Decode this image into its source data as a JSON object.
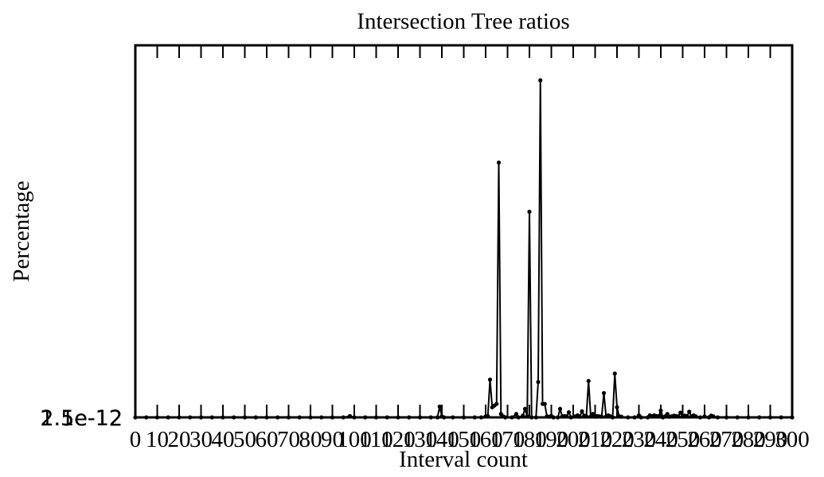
{
  "chart_data": {
    "type": "line",
    "title": "Intersection Tree ratios",
    "xlabel": "Interval count",
    "ylabel": "Percentage",
    "xlim": [
      0,
      300
    ],
    "ylim": [
      0,
      1.0
    ],
    "x_tick_labels": [
      "0",
      "10",
      "20",
      "30",
      "40",
      "50",
      "60",
      "70",
      "80",
      "90",
      "100",
      "110",
      "120",
      "130",
      "140",
      "150",
      "160",
      "170",
      "180",
      "190",
      "200",
      "210",
      "220",
      "230",
      "240",
      "250",
      "260",
      "270",
      "280",
      "290",
      "300"
    ],
    "y_tick_labels": [
      "2.5e-12",
      "1.5e-12",
      "1e-12"
    ],
    "grid": false,
    "legend": "none",
    "line_color": "#000000",
    "series": [
      {
        "points": [
          [
            0,
            0
          ],
          [
            5,
            0
          ],
          [
            10,
            0
          ],
          [
            15,
            0
          ],
          [
            20,
            0
          ],
          [
            25,
            0
          ],
          [
            30,
            0
          ],
          [
            35,
            0
          ],
          [
            40,
            0
          ],
          [
            45,
            0
          ],
          [
            50,
            0
          ],
          [
            55,
            0
          ],
          [
            60,
            0
          ],
          [
            65,
            0
          ],
          [
            70,
            0
          ],
          [
            75,
            0
          ],
          [
            80,
            0
          ],
          [
            85,
            0
          ],
          [
            90,
            0
          ],
          [
            95,
            0
          ],
          [
            98,
            0.004
          ],
          [
            100,
            0
          ],
          [
            105,
            0
          ],
          [
            110,
            0
          ],
          [
            115,
            0
          ],
          [
            120,
            0
          ],
          [
            125,
            0
          ],
          [
            130,
            0
          ],
          [
            135,
            0
          ],
          [
            138,
            0
          ],
          [
            139,
            0.032
          ],
          [
            140,
            0.003
          ],
          [
            141,
            0
          ],
          [
            145,
            0
          ],
          [
            150,
            0
          ],
          [
            155,
            0
          ],
          [
            158,
            0
          ],
          [
            160,
            0.003
          ],
          [
            161,
            0.004
          ],
          [
            162,
            0.112
          ],
          [
            163,
            0.03
          ],
          [
            164,
            0.035
          ],
          [
            165,
            0.04
          ],
          [
            166,
            0.756
          ],
          [
            167,
            0.01
          ],
          [
            168,
            0.003
          ],
          [
            169,
            0
          ],
          [
            172,
            0
          ],
          [
            174,
            0.01
          ],
          [
            175,
            0
          ],
          [
            177,
            0.005
          ],
          [
            178,
            0.025
          ],
          [
            179,
            0.003
          ],
          [
            180,
            0.61
          ],
          [
            181,
            0
          ],
          [
            183,
            0
          ],
          [
            184,
            0.105
          ],
          [
            185,
            1.0
          ],
          [
            186,
            0.04
          ],
          [
            187,
            0.04
          ],
          [
            188,
            0.003
          ],
          [
            189,
            0.002
          ],
          [
            190,
            0.004
          ],
          [
            191,
            0
          ],
          [
            193,
            0
          ],
          [
            194,
            0.025
          ],
          [
            195,
            0.003
          ],
          [
            196,
            0.004
          ],
          [
            197,
            0.003
          ],
          [
            198,
            0.015
          ],
          [
            199,
            0
          ],
          [
            201,
            0.003
          ],
          [
            202,
            0.006
          ],
          [
            203,
            0.002
          ],
          [
            204,
            0.018
          ],
          [
            205,
            0.005
          ],
          [
            206,
            0.003
          ],
          [
            207,
            0.108
          ],
          [
            208,
            0.003
          ],
          [
            209,
            0.01
          ],
          [
            210,
            0.002
          ],
          [
            211,
            0.004
          ],
          [
            212,
            0.003
          ],
          [
            213,
            0.002
          ],
          [
            214,
            0.072
          ],
          [
            215,
            0.003
          ],
          [
            216,
            0.006
          ],
          [
            217,
            0.003
          ],
          [
            218,
            0
          ],
          [
            219,
            0.13
          ],
          [
            220,
            0.03
          ],
          [
            221,
            0.003
          ],
          [
            222,
            0.002
          ],
          [
            225,
            0
          ],
          [
            228,
            0
          ],
          [
            230,
            0.006
          ],
          [
            231,
            0
          ],
          [
            234,
            0
          ],
          [
            235,
            0.006
          ],
          [
            236,
            0.003
          ],
          [
            237,
            0.006
          ],
          [
            238,
            0.004
          ],
          [
            239,
            0.003
          ],
          [
            240,
            0.02
          ],
          [
            241,
            0
          ],
          [
            242,
            0.003
          ],
          [
            243,
            0.01
          ],
          [
            244,
            0.002
          ],
          [
            245,
            0.003
          ],
          [
            246,
            0.005
          ],
          [
            247,
            0.004
          ],
          [
            248,
            0.003
          ],
          [
            249,
            0.014
          ],
          [
            250,
            0.003
          ],
          [
            251,
            0.005
          ],
          [
            252,
            0.004
          ],
          [
            253,
            0.017
          ],
          [
            254,
            0.003
          ],
          [
            255,
            0.006
          ],
          [
            256,
            0.003
          ],
          [
            258,
            0
          ],
          [
            260,
            0.003
          ],
          [
            262,
            0
          ],
          [
            263,
            0.005
          ],
          [
            264,
            0.003
          ],
          [
            266,
            0
          ],
          [
            270,
            0
          ],
          [
            275,
            0
          ],
          [
            280,
            0
          ],
          [
            285,
            0
          ],
          [
            290,
            0
          ],
          [
            295,
            0
          ],
          [
            300,
            0
          ]
        ]
      }
    ]
  }
}
